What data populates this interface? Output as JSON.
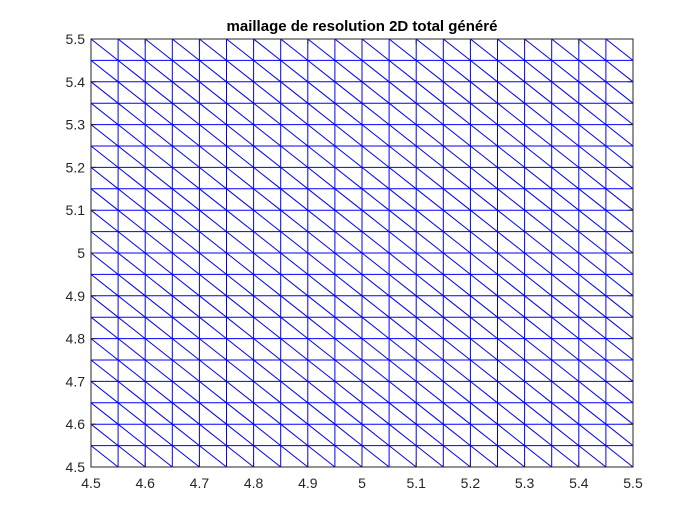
{
  "chart_data": {
    "type": "mesh",
    "title": "maillage de resolution 2D total généré",
    "xlabel": "",
    "ylabel": "",
    "xlim": [
      4.5,
      5.5
    ],
    "ylim": [
      4.5,
      5.5
    ],
    "xticks": [
      "4.5",
      "4.6",
      "4.7",
      "4.8",
      "4.9",
      "5",
      "5.1",
      "5.2",
      "5.3",
      "5.4",
      "5.5"
    ],
    "yticks": [
      "4.5",
      "4.6",
      "4.7",
      "4.8",
      "4.9",
      "5",
      "5.1",
      "5.2",
      "5.3",
      "5.4",
      "5.5"
    ],
    "mesh": {
      "x_nodes": 21,
      "y_nodes": 21,
      "x_range": [
        4.5,
        5.5
      ],
      "y_range": [
        4.5,
        5.5
      ],
      "element": "triangle",
      "diagonal": "top-left to bottom-right"
    },
    "grid": false,
    "legend": "none",
    "colors": {
      "mesh": "#0000ff",
      "axes": "#262626",
      "background": "#ffffff"
    }
  }
}
